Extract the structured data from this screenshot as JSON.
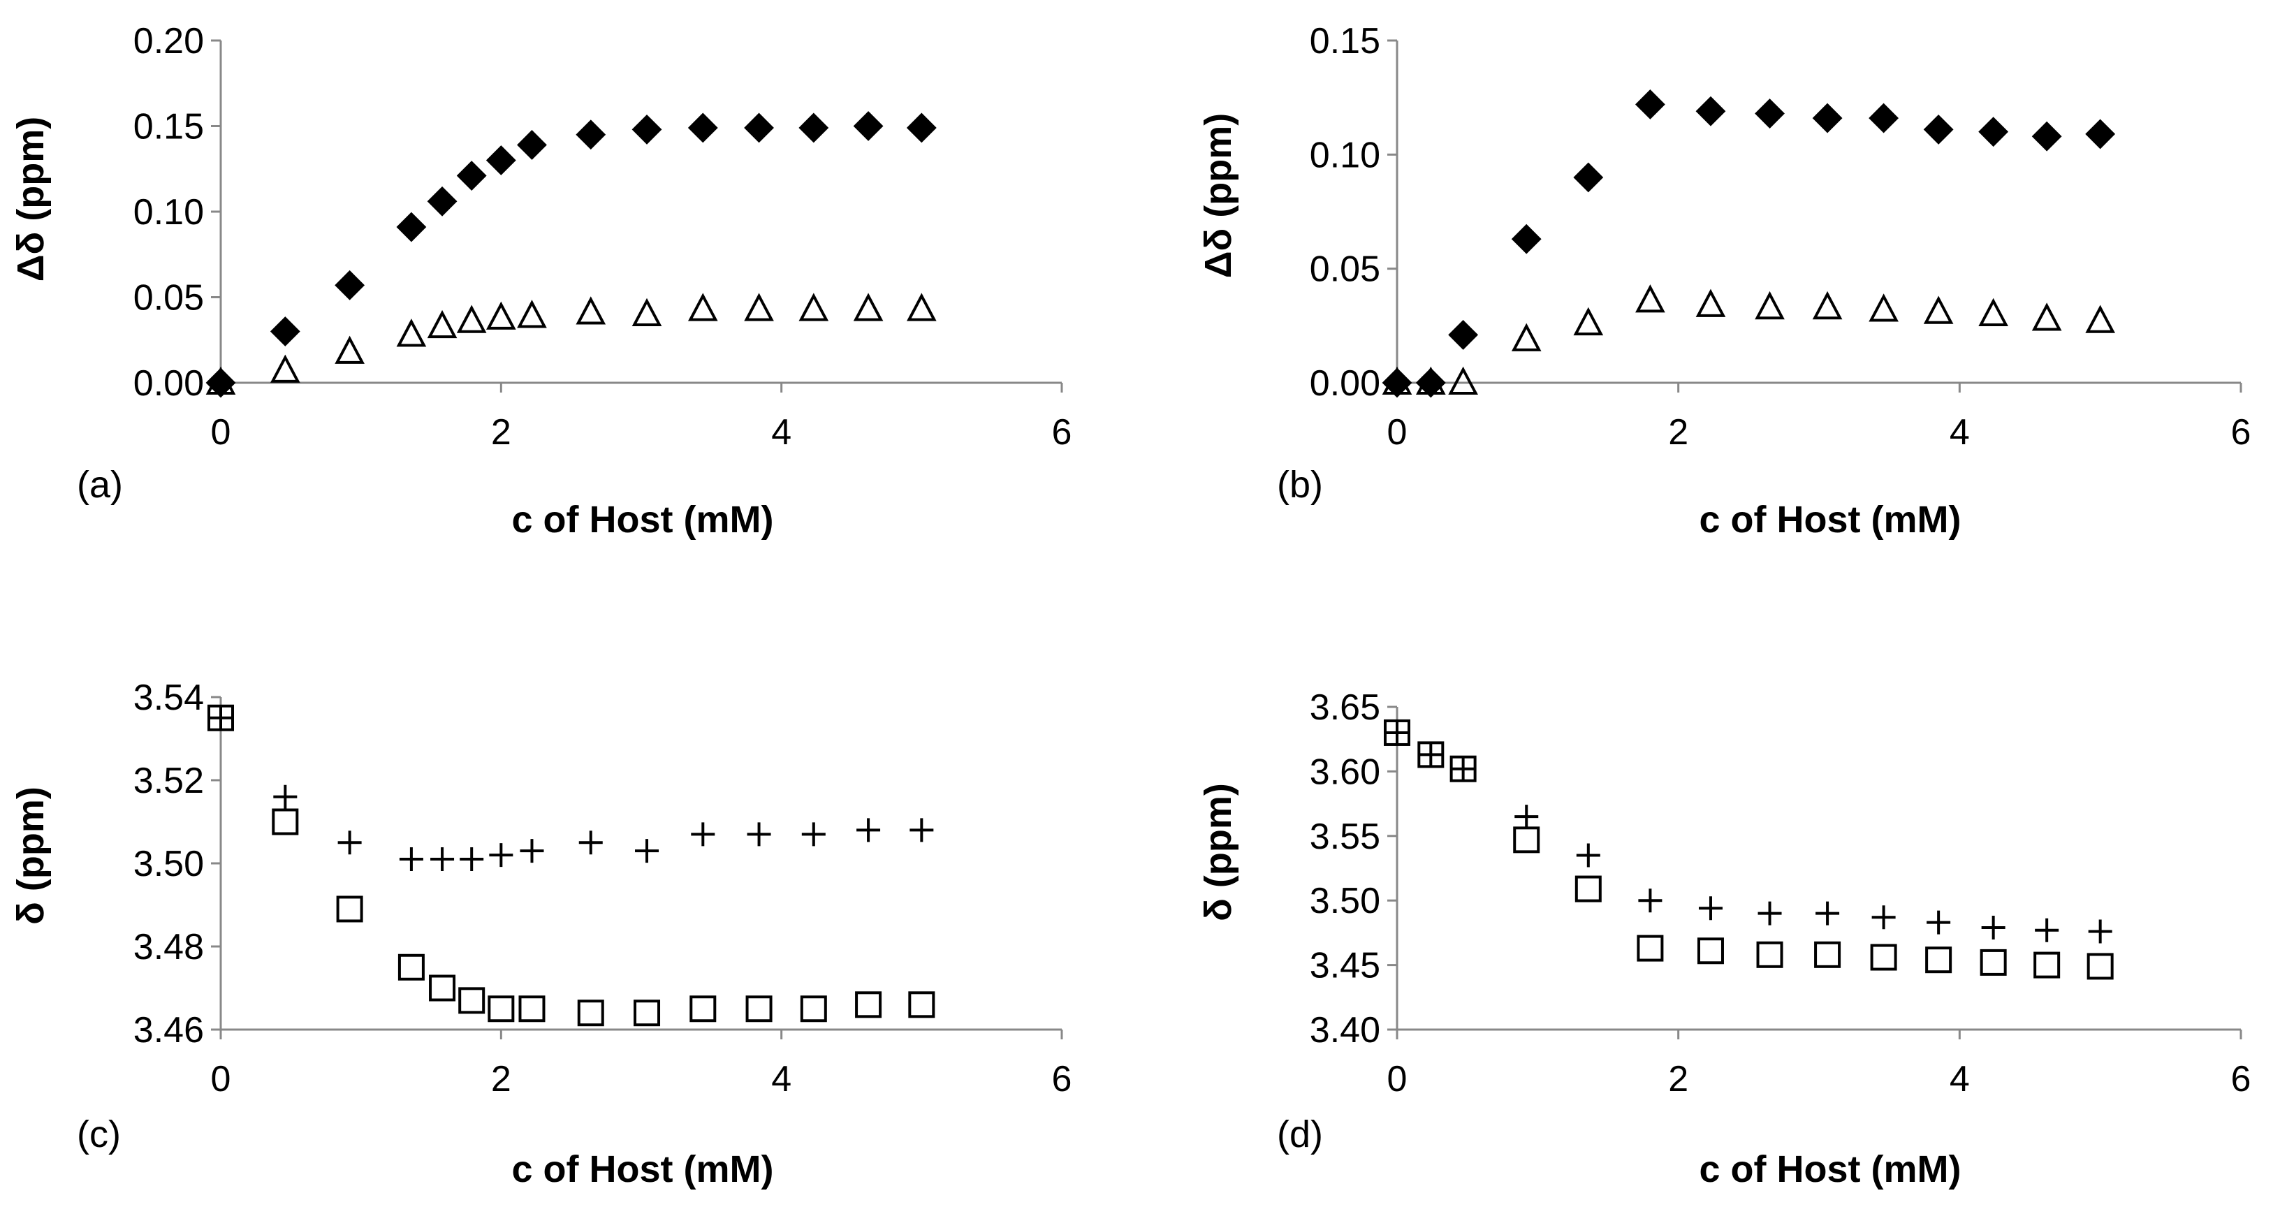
{
  "chart_data": [
    {
      "type": "scatter",
      "panel_label": "(a)",
      "xlabel": "c of Host (mM)",
      "ylabel": "Δδ (ppm)",
      "xlim": [
        0,
        6
      ],
      "ylim": [
        0,
        0.2
      ],
      "xticks": [
        0,
        2,
        4,
        6
      ],
      "xtick_labels": [
        "0",
        "2",
        "4",
        "6"
      ],
      "yticks": [
        0,
        0.05,
        0.1,
        0.15,
        0.2
      ],
      "ytick_labels": [
        "0.00",
        "0.05",
        "0.10",
        "0.15",
        "0.20"
      ],
      "grid": false,
      "series": [
        {
          "name": "filled diamonds",
          "marker": "diamond-filled",
          "x": [
            0.0,
            0.46,
            0.92,
            1.36,
            1.58,
            1.79,
            2.0,
            2.22,
            2.64,
            3.04,
            3.44,
            3.84,
            4.23,
            4.62,
            5.0
          ],
          "y": [
            0.0,
            0.03,
            0.057,
            0.091,
            0.106,
            0.121,
            0.13,
            0.139,
            0.145,
            0.148,
            0.149,
            0.149,
            0.149,
            0.15,
            0.149
          ]
        },
        {
          "name": "open triangles",
          "marker": "triangle-open",
          "x": [
            0.0,
            0.46,
            0.92,
            1.36,
            1.58,
            1.79,
            2.0,
            2.22,
            2.64,
            3.04,
            3.44,
            3.84,
            4.23,
            4.62,
            5.0
          ],
          "y": [
            0.0,
            0.007,
            0.018,
            0.028,
            0.033,
            0.036,
            0.038,
            0.039,
            0.041,
            0.04,
            0.043,
            0.043,
            0.043,
            0.043,
            0.043
          ]
        }
      ]
    },
    {
      "type": "scatter",
      "panel_label": "(b)",
      "xlabel": "c of Host (mM)",
      "ylabel": "Δδ (ppm)",
      "xlim": [
        0,
        6
      ],
      "ylim": [
        0,
        0.15
      ],
      "xticks": [
        0,
        2,
        4,
        6
      ],
      "xtick_labels": [
        "0",
        "2",
        "4",
        "6"
      ],
      "yticks": [
        0,
        0.05,
        0.1,
        0.15
      ],
      "ytick_labels": [
        "0.00",
        "0.05",
        "0.10",
        "0.15"
      ],
      "grid": false,
      "series": [
        {
          "name": "filled diamonds",
          "marker": "diamond-filled",
          "x": [
            0.0,
            0.24,
            0.47,
            0.92,
            1.36,
            1.8,
            2.23,
            2.65,
            3.06,
            3.46,
            3.85,
            4.24,
            4.62,
            5.0
          ],
          "y": [
            0.0,
            0.0,
            0.021,
            0.063,
            0.09,
            0.122,
            0.119,
            0.118,
            0.116,
            0.116,
            0.111,
            0.11,
            0.108,
            0.109
          ]
        },
        {
          "name": "open triangles",
          "marker": "triangle-open",
          "x": [
            0.0,
            0.24,
            0.47,
            0.92,
            1.36,
            1.8,
            2.23,
            2.65,
            3.06,
            3.46,
            3.85,
            4.24,
            4.62,
            5.0
          ],
          "y": [
            0.0,
            0.0,
            0.0,
            0.019,
            0.026,
            0.036,
            0.034,
            0.033,
            0.033,
            0.032,
            0.031,
            0.03,
            0.028,
            0.027
          ]
        }
      ]
    },
    {
      "type": "scatter",
      "panel_label": "(c)",
      "xlabel": "c of Host (mM)",
      "ylabel": "δ (ppm)",
      "xlim": [
        0,
        6
      ],
      "ylim": [
        3.46,
        3.54
      ],
      "xticks": [
        0,
        2,
        4,
        6
      ],
      "xtick_labels": [
        "0",
        "2",
        "4",
        "6"
      ],
      "yticks": [
        3.46,
        3.48,
        3.5,
        3.52,
        3.54
      ],
      "ytick_labels": [
        "3.46",
        "3.48",
        "3.50",
        "3.52",
        "3.54"
      ],
      "grid": false,
      "series": [
        {
          "name": "plus",
          "marker": "plus",
          "x": [
            0.0,
            0.46,
            0.92,
            1.36,
            1.58,
            1.79,
            2.0,
            2.22,
            2.64,
            3.04,
            3.44,
            3.84,
            4.23,
            4.62,
            5.0
          ],
          "y": [
            3.535,
            3.516,
            3.505,
            3.501,
            3.501,
            3.501,
            3.502,
            3.503,
            3.505,
            3.503,
            3.507,
            3.507,
            3.507,
            3.508,
            3.508
          ]
        },
        {
          "name": "open squares",
          "marker": "square-open",
          "x": [
            0.0,
            0.46,
            0.92,
            1.36,
            1.58,
            1.79,
            2.0,
            2.22,
            2.64,
            3.04,
            3.44,
            3.84,
            4.23,
            4.62,
            5.0
          ],
          "y": [
            3.535,
            3.51,
            3.489,
            3.475,
            3.47,
            3.467,
            3.465,
            3.465,
            3.464,
            3.464,
            3.465,
            3.465,
            3.465,
            3.466,
            3.466
          ]
        }
      ]
    },
    {
      "type": "scatter",
      "panel_label": "(d)",
      "xlabel": "c of Host (mM)",
      "ylabel": "δ (ppm)",
      "xlim": [
        0,
        6
      ],
      "ylim": [
        3.4,
        3.65
      ],
      "xticks": [
        0,
        2,
        4,
        6
      ],
      "xtick_labels": [
        "0",
        "2",
        "4",
        "6"
      ],
      "yticks": [
        3.4,
        3.45,
        3.5,
        3.55,
        3.6,
        3.65
      ],
      "ytick_labels": [
        "3.40",
        "3.45",
        "3.50",
        "3.55",
        "3.60",
        "3.65"
      ],
      "grid": false,
      "series": [
        {
          "name": "plus",
          "marker": "plus",
          "x": [
            0.0,
            0.24,
            0.47,
            0.92,
            1.36,
            1.8,
            2.23,
            2.65,
            3.06,
            3.46,
            3.85,
            4.24,
            4.62,
            5.0
          ],
          "y": [
            3.63,
            3.613,
            3.602,
            3.565,
            3.535,
            3.5,
            3.494,
            3.49,
            3.49,
            3.487,
            3.483,
            3.479,
            3.477,
            3.476
          ]
        },
        {
          "name": "open squares",
          "marker": "square-open",
          "x": [
            0.0,
            0.24,
            0.47,
            0.92,
            1.36,
            1.8,
            2.23,
            2.65,
            3.06,
            3.46,
            3.85,
            4.24,
            4.62,
            5.0
          ],
          "y": [
            3.63,
            3.613,
            3.602,
            3.547,
            3.509,
            3.463,
            3.461,
            3.458,
            3.458,
            3.456,
            3.454,
            3.452,
            3.45,
            3.449
          ]
        }
      ]
    }
  ]
}
